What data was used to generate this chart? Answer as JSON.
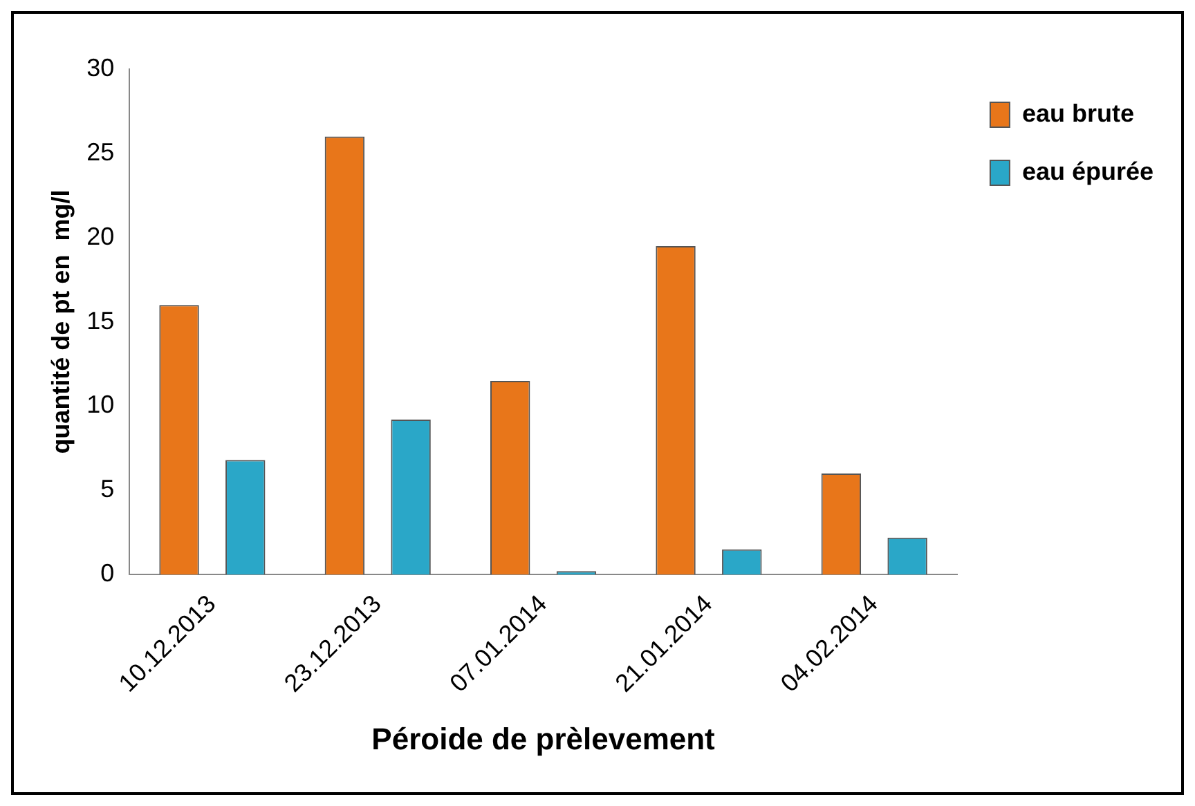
{
  "chart_data": {
    "type": "bar",
    "xlabel": "Péroide de prèlevement",
    "ylabel": "quantité de pt en  mg/l",
    "categories": [
      "10.12.2013",
      "23.12.2013",
      "07.01.2014",
      "21.01.2014",
      "04.02.2014"
    ],
    "series": [
      {
        "name": "eau brute",
        "color": "#e8761a",
        "values": [
          16,
          26,
          11.5,
          19.5,
          6
        ]
      },
      {
        "name": "eau épurée",
        "color": "#2aa7c8",
        "values": [
          6.8,
          9.2,
          0.2,
          1.5,
          2.2
        ]
      }
    ],
    "ylim": [
      0,
      30
    ],
    "yticks": [
      0,
      5,
      10,
      15,
      20,
      25,
      30
    ],
    "grid": false,
    "legend": "top right"
  }
}
